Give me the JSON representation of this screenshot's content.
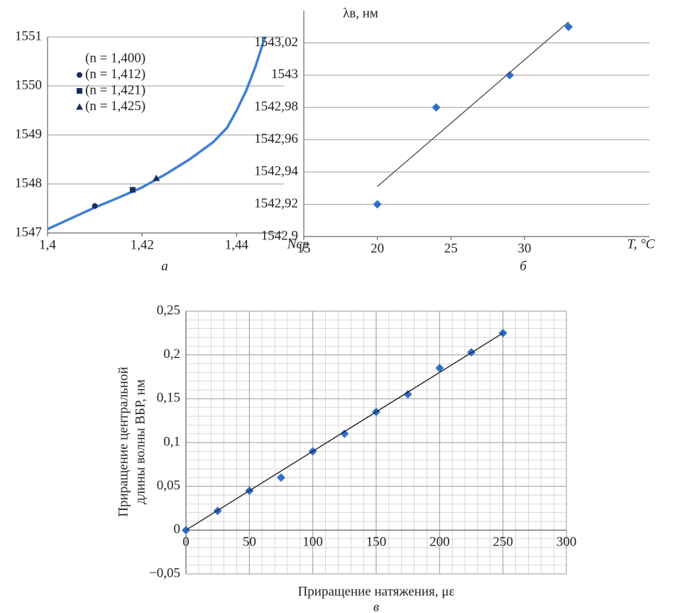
{
  "chart_data": [
    {
      "type": "line",
      "caption": "а",
      "x_label": "Nср",
      "xlim": [
        1.4,
        1.45
      ],
      "xticks": [
        {
          "value": 1.4,
          "label": "1,4"
        },
        {
          "value": 1.42,
          "label": "1,42"
        },
        {
          "value": 1.44,
          "label": "1,44"
        }
      ],
      "ylim": [
        1547,
        1551
      ],
      "yticks": [
        1547,
        1548,
        1549,
        1550,
        1551
      ],
      "grid": "y",
      "series": [
        {
          "name": "(n = 1,400)",
          "mode": "line",
          "color": "#3f7fd6",
          "x": [
            1.4,
            1.405,
            1.41,
            1.415,
            1.42,
            1.425,
            1.43,
            1.435,
            1.438,
            1.44,
            1.442,
            1.444,
            1.446
          ],
          "y": [
            1547.08,
            1547.3,
            1547.52,
            1547.72,
            1547.93,
            1548.2,
            1548.5,
            1548.85,
            1549.15,
            1549.5,
            1549.9,
            1550.4,
            1551
          ]
        },
        {
          "name": "(n = 1,412)",
          "mode": "markers",
          "marker": "circle",
          "color": "#1b2d5c",
          "x": [
            1.41
          ],
          "y": [
            1547.55
          ]
        },
        {
          "name": "(n = 1,421)",
          "mode": "markers",
          "marker": "square",
          "color": "#1b2d5c",
          "x": [
            1.418
          ],
          "y": [
            1547.88
          ]
        },
        {
          "name": "(n = 1,425)",
          "mode": "markers",
          "marker": "triangle",
          "color": "#1b2d5c",
          "x": [
            1.423
          ],
          "y": [
            1548.12
          ]
        }
      ]
    },
    {
      "type": "scatter",
      "caption": "б",
      "x_label": "T, °C",
      "y_label": "λв, нм",
      "xlim": [
        15,
        38.5
      ],
      "xticks": [
        15,
        20,
        25,
        30
      ],
      "ylim": [
        1542.9,
        1543.04
      ],
      "yticks": [
        {
          "value": 1542.9,
          "label": "1542,9"
        },
        {
          "value": 1542.92,
          "label": "1542,92"
        },
        {
          "value": 1542.94,
          "label": "1542,94"
        },
        {
          "value": 1542.96,
          "label": "1542,96"
        },
        {
          "value": 1542.98,
          "label": "1542,98"
        },
        1543,
        {
          "value": 1543.02,
          "label": "1543,02"
        }
      ],
      "grid": "y",
      "series": [
        {
          "mode": "markers",
          "marker": "diamond",
          "color": "#2f6fcc",
          "x": [
            20,
            24,
            29,
            33
          ],
          "y": [
            1542.92,
            1542.98,
            1543,
            1543.03
          ]
        },
        {
          "mode": "line",
          "color": "#555555",
          "x": [
            20,
            33
          ],
          "y": [
            1542.931,
            1543.033
          ]
        }
      ]
    },
    {
      "type": "scatter",
      "caption": "в",
      "x_label": "Приращение натяжения, με",
      "y_label": [
        "Приращение центральной",
        "длины волны ВБР, нм"
      ],
      "xlim": [
        0,
        300
      ],
      "xticks": [
        0,
        50,
        100,
        150,
        200,
        250,
        300
      ],
      "ylim": [
        -0.05,
        0.25
      ],
      "yticks": [
        {
          "value": -0.05,
          "label": "−0,05"
        },
        0,
        {
          "value": 0.05,
          "label": "0,05"
        },
        {
          "value": 0.1,
          "label": "0,1"
        },
        {
          "value": 0.15,
          "label": "0,15"
        },
        {
          "value": 0.2,
          "label": "0,2"
        },
        {
          "value": 0.25,
          "label": "0,25"
        }
      ],
      "grid": "both",
      "minor_grid": {
        "x": 10,
        "y": 0.01
      },
      "x_axis_at_zero": true,
      "series": [
        {
          "mode": "markers",
          "marker": "diamond",
          "color": "#2f6fcc",
          "x": [
            0,
            25,
            50,
            75,
            100,
            125,
            150,
            175,
            200,
            225,
            250
          ],
          "y": [
            0,
            0.022,
            0.045,
            0.06,
            0.09,
            0.11,
            0.135,
            0.155,
            0.185,
            0.203,
            0.225
          ]
        },
        {
          "mode": "line",
          "color": "#222222",
          "x": [
            0,
            250
          ],
          "y": [
            0,
            0.225
          ]
        }
      ]
    }
  ]
}
